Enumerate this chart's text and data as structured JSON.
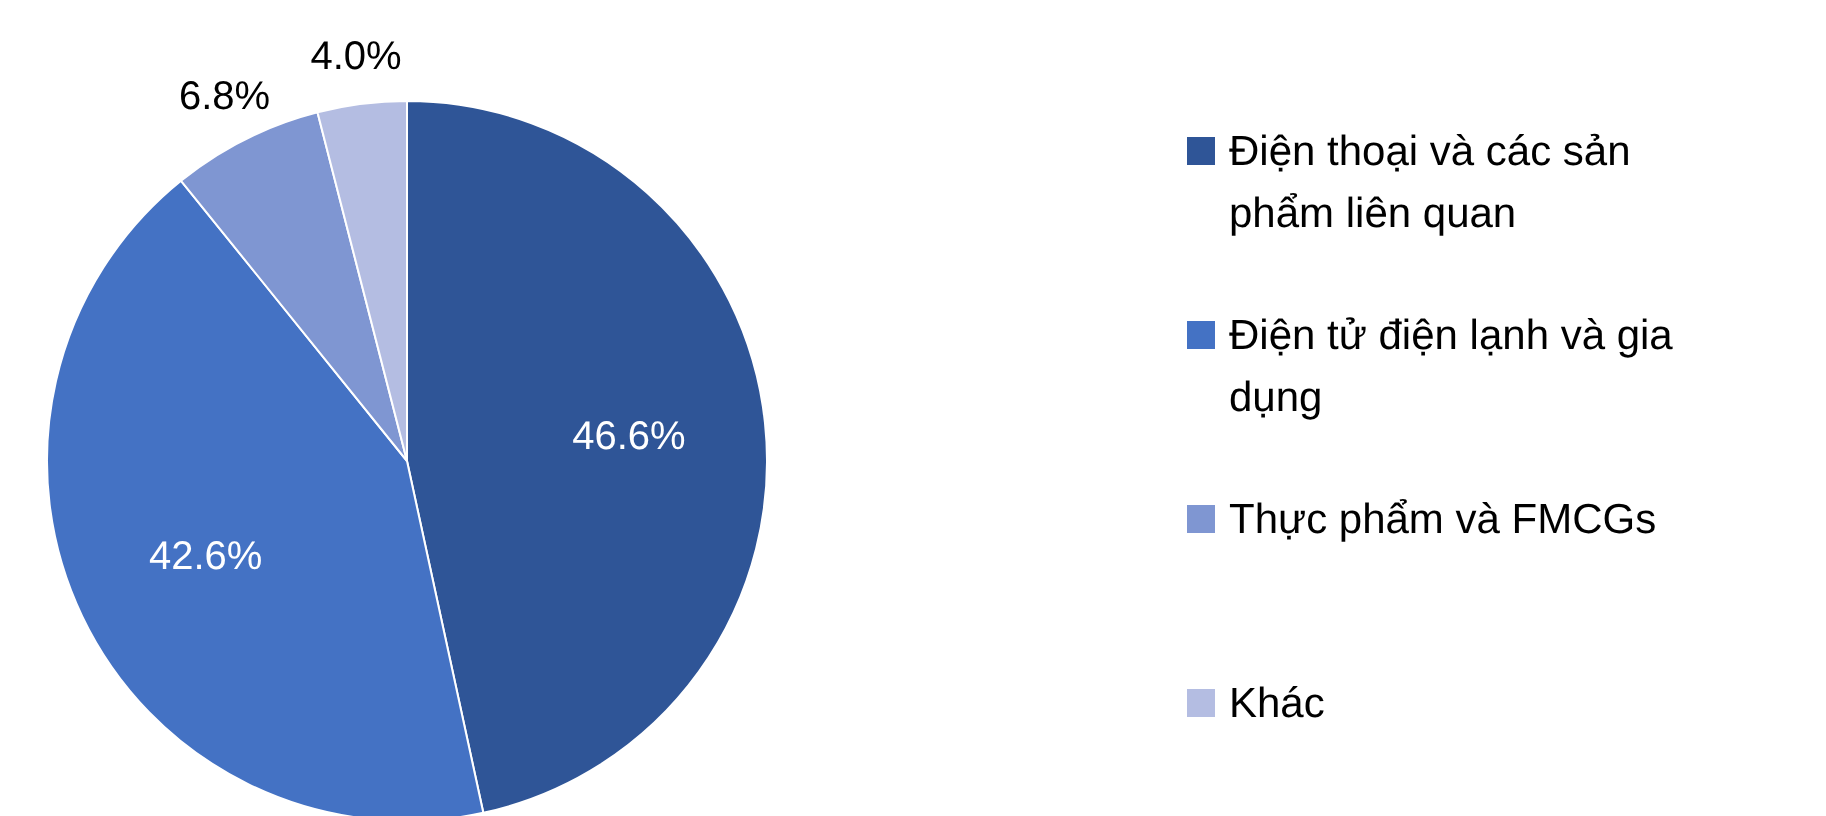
{
  "chart_data": {
    "type": "pie",
    "categories": [
      "Điện thoại và các sản phẩm liên quan",
      "Điện tử điện lạnh và gia dụng",
      "Thực phẩm và FMCGs",
      "Khác"
    ],
    "values": [
      46.6,
      42.6,
      6.8,
      4.0
    ],
    "colors": [
      "#2f5597",
      "#4472c4",
      "#7f96d2",
      "#b4bde2"
    ],
    "value_labels": [
      "46.6%",
      "42.6%",
      "6.8%",
      "4.0%"
    ],
    "legend": "right"
  }
}
